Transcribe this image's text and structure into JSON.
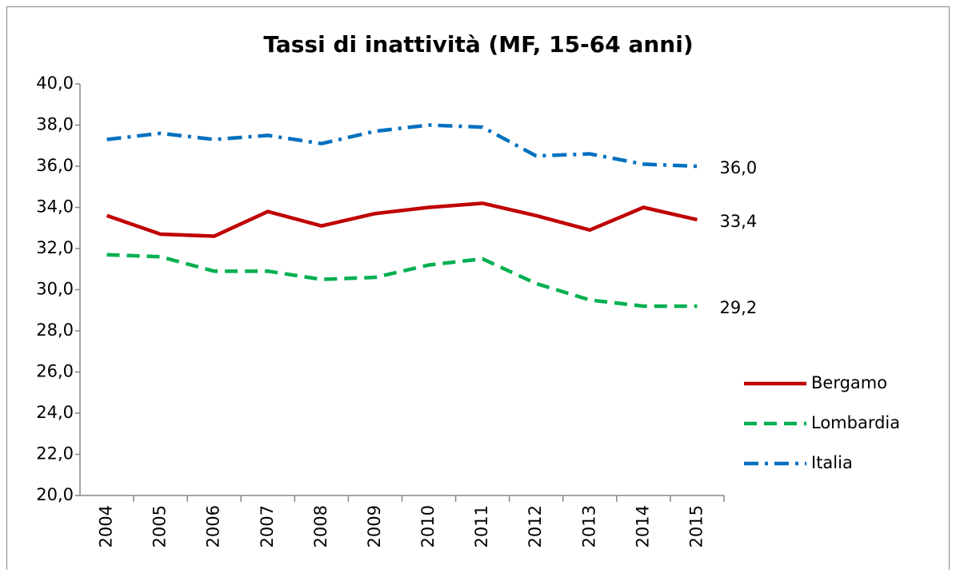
{
  "chart_data": {
    "type": "line",
    "title": "Tassi di inattività (MF, 15-64 anni)",
    "categories": [
      "2004",
      "2005",
      "2006",
      "2007",
      "2008",
      "2009",
      "2010",
      "2011",
      "2012",
      "2013",
      "2014",
      "2015"
    ],
    "series": [
      {
        "name": "Bergamo",
        "color": "#c00000",
        "dash": "solid",
        "values": [
          33.6,
          32.7,
          32.6,
          33.8,
          33.1,
          33.7,
          34.0,
          34.2,
          33.6,
          32.9,
          34.0,
          33.4
        ],
        "value_labels": [
          null,
          null,
          null,
          null,
          null,
          null,
          null,
          null,
          null,
          null,
          null,
          "33,4"
        ]
      },
      {
        "name": "Lombardia",
        "color": "#00b050",
        "dash": "dashed",
        "values": [
          31.7,
          31.6,
          30.9,
          30.9,
          30.5,
          30.6,
          31.2,
          31.5,
          30.3,
          29.5,
          29.2,
          29.2
        ],
        "value_labels": [
          null,
          null,
          null,
          null,
          null,
          null,
          null,
          null,
          null,
          null,
          null,
          "29,2"
        ]
      },
      {
        "name": "Italia",
        "color": "#0070c0",
        "dash": "dashdot",
        "values": [
          37.3,
          37.6,
          37.3,
          37.5,
          37.1,
          37.7,
          38.0,
          37.9,
          36.5,
          36.6,
          36.1,
          36.0
        ],
        "value_labels": [
          null,
          null,
          null,
          null,
          null,
          null,
          null,
          null,
          null,
          null,
          null,
          "36,0"
        ]
      }
    ],
    "ylim": [
      20,
      40
    ],
    "yticks": [
      {
        "value": 20,
        "label": "20,0"
      },
      {
        "value": 22,
        "label": "22,0"
      },
      {
        "value": 24,
        "label": "24,0"
      },
      {
        "value": 26,
        "label": "26,0"
      },
      {
        "value": 28,
        "label": "28,0"
      },
      {
        "value": 30,
        "label": "30,0"
      },
      {
        "value": 32,
        "label": "32,0"
      },
      {
        "value": 34,
        "label": "34,0"
      },
      {
        "value": 36,
        "label": "36,0"
      },
      {
        "value": 38,
        "label": "38,0"
      },
      {
        "value": 40,
        "label": "40,0"
      }
    ],
    "grid": false,
    "legend": "right"
  }
}
